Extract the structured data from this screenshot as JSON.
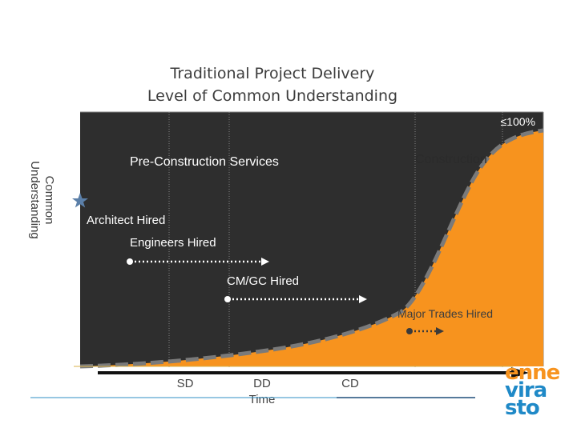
{
  "title_line1": "Traditional Project Delivery",
  "title_line2": "Level of Common Understanding",
  "ylabel_line1": "Common",
  "ylabel_line2": "Understanding",
  "logo": {
    "line1": "enne",
    "line2": "vira",
    "line3": "sto"
  },
  "chart_data": {
    "type": "area",
    "ymax_label": "≤100%",
    "phases": [
      "Pre-Construction Services",
      "Construction"
    ],
    "x_axis_label": "Time",
    "x_ticks": [
      "SD",
      "DD",
      "CD"
    ],
    "events": [
      {
        "label": "Architect Hired",
        "star": true
      },
      {
        "label": "Engineers Hired",
        "arrow": true
      },
      {
        "label": "CM/GC Hired",
        "arrow": true
      },
      {
        "label": "Major Trades Hired",
        "arrow": true
      }
    ],
    "curve_y_percent": [
      3,
      5,
      8,
      13,
      22,
      35,
      60,
      87,
      97,
      100
    ],
    "colors": {
      "background": "#2e2e2e",
      "fill": "#f7931e",
      "curve": "#7a7a7a",
      "axis": "#111111",
      "logo_orange": "#f7931e",
      "logo_blue": "#1f89c7"
    }
  }
}
